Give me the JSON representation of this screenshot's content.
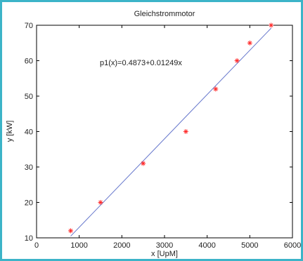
{
  "colors": {
    "frame": "#3cb4c8",
    "fit_line": "#6677cc",
    "markers": "#ff2a2a",
    "axes": "#000000"
  },
  "chart_data": {
    "type": "scatter",
    "title": "Gleichstrommotor",
    "xlabel": "x [UpM]",
    "ylabel": "y [kW]",
    "xlim": [
      0,
      6000
    ],
    "ylim": [
      10,
      70
    ],
    "xticks": [
      0,
      1000,
      2000,
      3000,
      4000,
      5000,
      6000
    ],
    "yticks": [
      10,
      20,
      30,
      40,
      50,
      60,
      70
    ],
    "grid": false,
    "marker": "asterisk",
    "series": [
      {
        "x": [
          800,
          1500,
          2500,
          3500,
          4200,
          4700,
          5000,
          5500
        ],
        "y": [
          12,
          20,
          31,
          40,
          52,
          60,
          65,
          70
        ]
      }
    ],
    "fit": {
      "label": "p1(x)=0.4873+0.01249x",
      "x_range": [
        800,
        5500
      ]
    }
  }
}
